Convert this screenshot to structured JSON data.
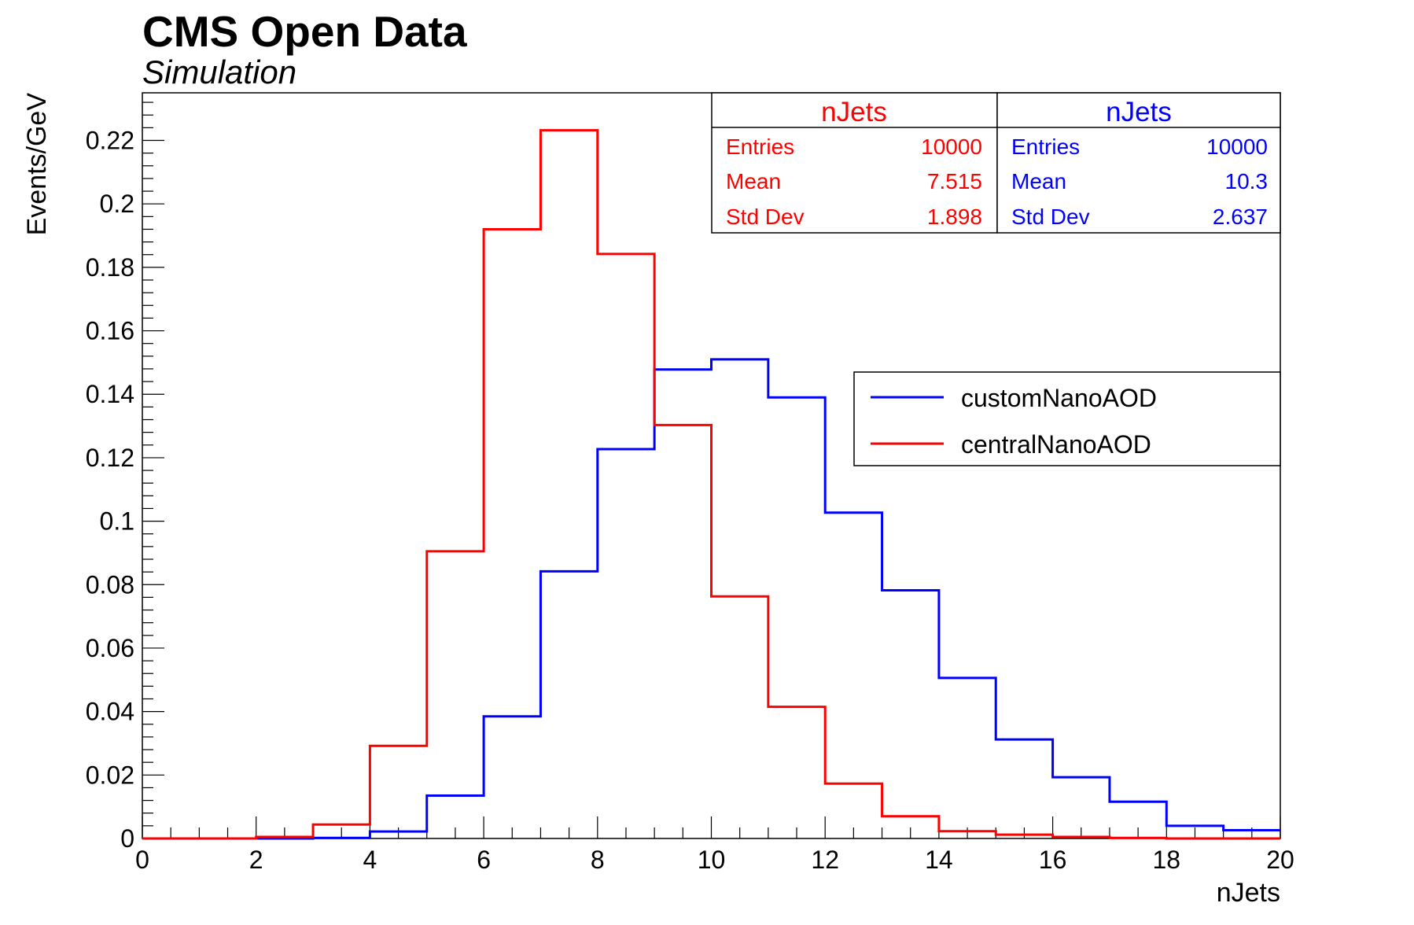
{
  "header": {
    "title": "CMS Open Data",
    "subtitle": "Simulation"
  },
  "stats_boxes": [
    {
      "title": "nJets",
      "color": "#ff0000",
      "rows": [
        {
          "label": "Entries",
          "value": "10000"
        },
        {
          "label": "Mean",
          "value": "7.515"
        },
        {
          "label": "Std Dev",
          "value": "1.898"
        }
      ]
    },
    {
      "title": "nJets",
      "color": "#0000ff",
      "rows": [
        {
          "label": "Entries",
          "value": "10000"
        },
        {
          "label": "Mean",
          "value": "10.3"
        },
        {
          "label": "Std Dev",
          "value": "2.637"
        }
      ]
    }
  ],
  "chart_data": {
    "type": "histogram-step",
    "title": "CMS Open Data",
    "subtitle": "Simulation",
    "xlabel": "nJets",
    "ylabel": "Events/GeV",
    "xlim": [
      0,
      20
    ],
    "ylim": [
      0,
      0.235
    ],
    "x_ticks": [
      "0",
      "2",
      "4",
      "6",
      "8",
      "10",
      "12",
      "14",
      "16",
      "18",
      "20"
    ],
    "y_ticks": [
      "0",
      "0.02",
      "0.04",
      "0.06",
      "0.08",
      "0.1",
      "0.12",
      "0.14",
      "0.16",
      "0.18",
      "0.2",
      "0.22"
    ],
    "bin_edges": [
      0,
      1,
      2,
      3,
      4,
      5,
      6,
      7,
      8,
      9,
      10,
      11,
      12,
      13,
      14,
      15,
      16,
      17,
      18,
      19,
      20
    ],
    "legend_position": "right, middle",
    "series": [
      {
        "name": "customNanoAOD",
        "color": "#0000ff",
        "values": [
          0,
          0,
          0,
          0.0002,
          0.0022,
          0.0135,
          0.0385,
          0.0842,
          0.1227,
          0.1478,
          0.151,
          0.139,
          0.1027,
          0.0782,
          0.0506,
          0.0312,
          0.0193,
          0.0116,
          0.004,
          0.0026
        ]
      },
      {
        "name": "centralNanoAOD",
        "color": "#ff0000",
        "values": [
          0,
          0,
          0.0005,
          0.0044,
          0.0292,
          0.0905,
          0.192,
          0.2232,
          0.1842,
          0.1303,
          0.0763,
          0.0415,
          0.0173,
          0.007,
          0.0023,
          0.0012,
          0.0005,
          0.0002,
          0,
          0
        ]
      }
    ]
  }
}
